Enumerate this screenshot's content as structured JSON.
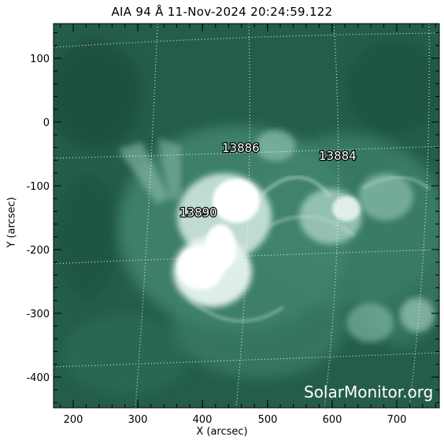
{
  "title": "AIA 94 Å 11-Nov-2024 20:24:59.122",
  "xlabel": "X (arcsec)",
  "ylabel": "Y (arcsec)",
  "xticks": [
    "200",
    "300",
    "400",
    "500",
    "600",
    "700"
  ],
  "yticks": [
    "100",
    "0",
    "-100",
    "-200",
    "-300",
    "-400"
  ],
  "regions": [
    "13886",
    "13884",
    "13890"
  ],
  "watermark": "SolarMonitor.org",
  "colors": {
    "background": "#245e4a",
    "highlight": "#ffffff",
    "grid": "#ffffff"
  }
}
